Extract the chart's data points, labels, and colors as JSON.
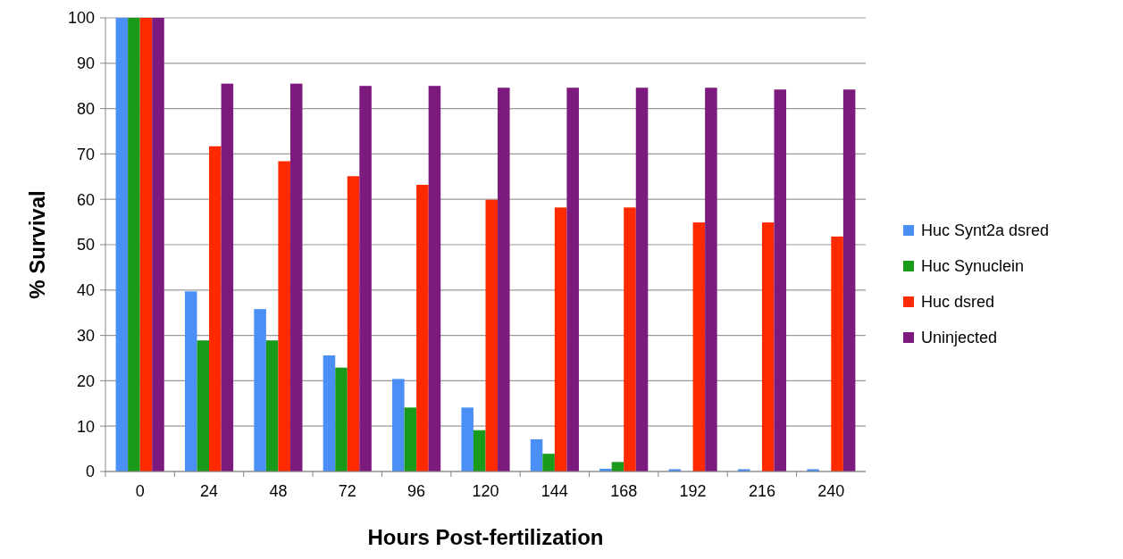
{
  "chart_data": {
    "type": "bar",
    "xlabel": "Hours Post-fertilization",
    "ylabel": "% Survival",
    "categories": [
      "0",
      "24",
      "48",
      "72",
      "96",
      "120",
      "144",
      "168",
      "192",
      "216",
      "240"
    ],
    "series": [
      {
        "name": "Huc Synt2a dsred",
        "color": "#4a8ff5",
        "values": [
          100,
          39.7,
          35.8,
          25.6,
          20.4,
          14.1,
          7.1,
          0.6,
          0.5,
          0.5,
          0.5
        ]
      },
      {
        "name": "Huc Synuclein",
        "color": "#1a9a1a",
        "values": [
          100,
          28.9,
          28.9,
          22.9,
          14.1,
          9.1,
          3.9,
          2.1,
          0,
          0,
          0
        ]
      },
      {
        "name": "Huc dsred",
        "color": "#ff2a00",
        "values": [
          100,
          71.7,
          68.4,
          65.1,
          63.2,
          59.9,
          58.2,
          58.2,
          54.9,
          54.9,
          51.8
        ]
      },
      {
        "name": "Uninjected",
        "color": "#7d1a7d",
        "values": [
          100,
          85.5,
          85.5,
          85,
          85,
          84.6,
          84.6,
          84.6,
          84.6,
          84.2,
          84.2
        ]
      }
    ],
    "ylim": [
      0,
      100
    ],
    "yticks": [
      0,
      10,
      20,
      30,
      40,
      50,
      60,
      70,
      80,
      90,
      100
    ],
    "grid": "y",
    "legend": "right"
  }
}
